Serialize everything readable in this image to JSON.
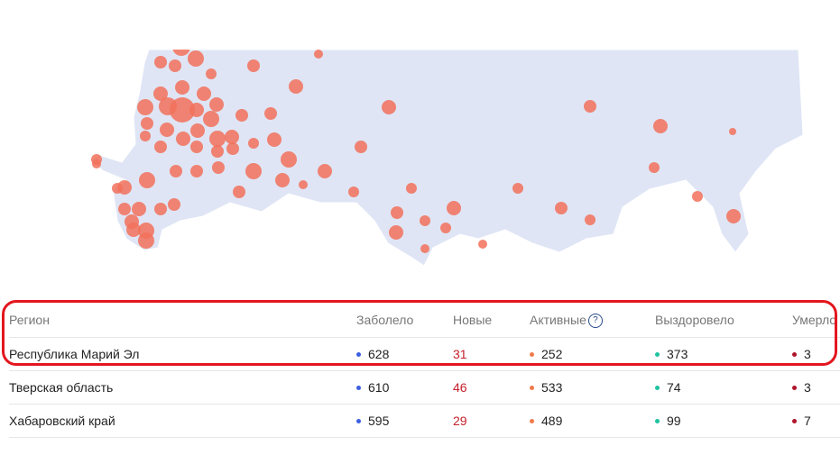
{
  "map": {
    "land_color": "#dfe5f5",
    "marker_color": "#f2715a"
  },
  "table": {
    "headers": {
      "region": "Регион",
      "confirmed": "Заболело",
      "new": "Новые",
      "active": "Активные",
      "active_help": "?",
      "recovered": "Выздоровело",
      "deaths": "Умерло"
    },
    "rows": [
      {
        "region": "Республика Марий Эл",
        "confirmed": "628",
        "new": "31",
        "active": "252",
        "recovered": "373",
        "deaths": "3"
      },
      {
        "region": "Тверская область",
        "confirmed": "610",
        "new": "46",
        "active": "533",
        "recovered": "74",
        "deaths": "3"
      },
      {
        "region": "Хабаровский край",
        "confirmed": "595",
        "new": "29",
        "active": "489",
        "recovered": "99",
        "deaths": "7"
      }
    ]
  },
  "colors": {
    "confirmed": "#3b5fe0",
    "active": "#f07a4a",
    "recovered": "#1fc2a0",
    "deaths": "#b0142a",
    "highlight": "#e3161f"
  }
}
